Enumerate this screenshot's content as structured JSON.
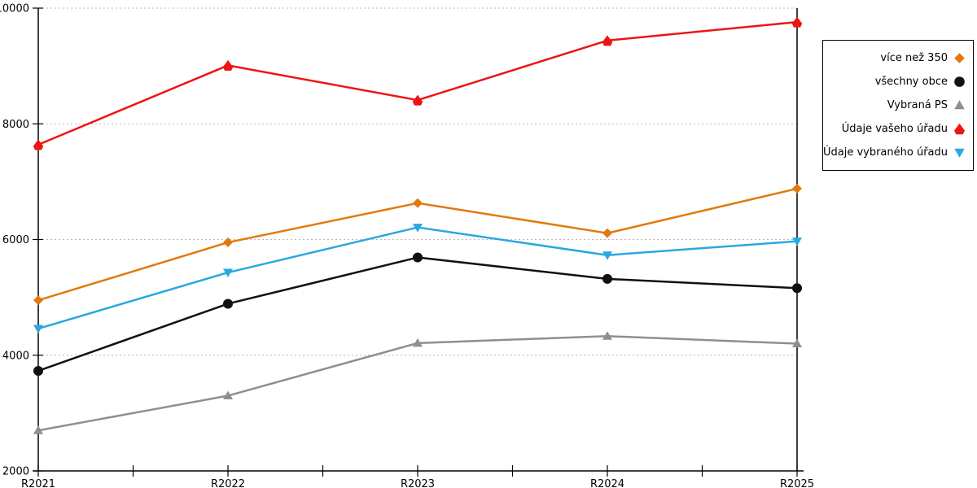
{
  "chart_data": {
    "type": "line",
    "title": "",
    "xlabel": "",
    "ylabel": "",
    "categories": [
      "R2021",
      "R2022",
      "R2023",
      "R2024",
      "R2025"
    ],
    "series": [
      {
        "name": "více než 350",
        "marker": "diamond",
        "color": "#E2790F",
        "values": [
          4950,
          5950,
          6630,
          6110,
          6880
        ]
      },
      {
        "name": "všechny obce",
        "marker": "circle",
        "color": "#111111",
        "values": [
          3730,
          4890,
          5690,
          5320,
          5160
        ]
      },
      {
        "name": "Vybraná PS",
        "marker": "triangle-up",
        "color": "#8F8F8F",
        "values": [
          2700,
          3300,
          4210,
          4330,
          4200
        ]
      },
      {
        "name": "Údaje vašeho úřadu",
        "marker": "pentagon-up",
        "color": "#EE1414",
        "values": [
          7640,
          9010,
          8410,
          9440,
          9760
        ]
      },
      {
        "name": "Údaje vybraného úřadu",
        "marker": "triangle-down",
        "color": "#29A8DF",
        "values": [
          4460,
          5430,
          6210,
          5730,
          5970
        ]
      }
    ],
    "ylim": [
      2000,
      10000
    ],
    "yticks": [
      2000,
      4000,
      6000,
      8000,
      10000
    ],
    "grid": "horizontal-dotted",
    "gridline_color": "#B8B8B8",
    "axis_color": "#000000",
    "legend_position": "right"
  }
}
